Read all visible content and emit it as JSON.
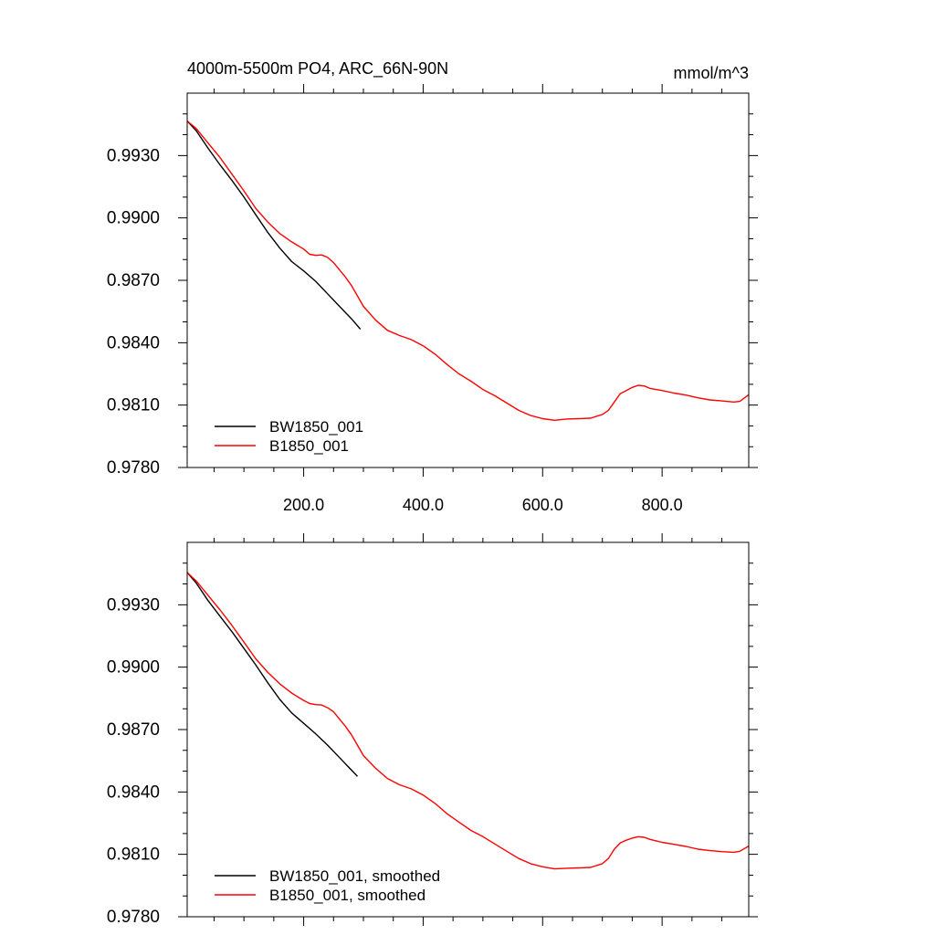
{
  "chart_data": [
    {
      "type": "line",
      "title": "4000m-5500m PO4, ARC_66N-90N",
      "units": "mmol/m^3",
      "xlim": [
        5,
        945
      ],
      "ylim": [
        0.978,
        0.996
      ],
      "xticks": [
        200,
        400,
        600,
        800
      ],
      "xtick_labels": [
        "200.0",
        "400.0",
        "600.0",
        "800.0"
      ],
      "yticks": [
        0.978,
        0.981,
        0.984,
        0.987,
        0.99,
        0.993
      ],
      "ytick_labels": [
        "0.9780",
        "0.9810",
        "0.9840",
        "0.9870",
        "0.9900",
        "0.9930"
      ],
      "legend": "bottom-left",
      "series": [
        {
          "name": "BW1850_001",
          "color": "#000000",
          "x": [
            5,
            20,
            40,
            60,
            80,
            100,
            120,
            140,
            160,
            180,
            200,
            220,
            240,
            260,
            280,
            295
          ],
          "y": [
            0.99466,
            0.9942,
            0.99335,
            0.99255,
            0.9918,
            0.991,
            0.99015,
            0.9893,
            0.98855,
            0.9879,
            0.98745,
            0.98695,
            0.98635,
            0.98575,
            0.98515,
            0.98465
          ]
        },
        {
          "name": "B1850_001",
          "color": "#ff0000",
          "x": [
            5,
            20,
            40,
            60,
            80,
            100,
            120,
            140,
            160,
            180,
            200,
            210,
            220,
            230,
            240,
            250,
            260,
            270,
            280,
            290,
            300,
            320,
            340,
            360,
            380,
            400,
            420,
            440,
            460,
            480,
            500,
            520,
            540,
            560,
            580,
            600,
            620,
            640,
            660,
            680,
            700,
            710,
            720,
            730,
            740,
            750,
            760,
            770,
            780,
            790,
            800,
            820,
            840,
            860,
            880,
            900,
            920,
            930,
            945
          ],
          "y": [
            0.99466,
            0.9943,
            0.9936,
            0.9929,
            0.9921,
            0.9913,
            0.99045,
            0.9898,
            0.98925,
            0.98885,
            0.9885,
            0.98825,
            0.9882,
            0.98822,
            0.9881,
            0.98785,
            0.9875,
            0.98715,
            0.98675,
            0.98625,
            0.98575,
            0.9851,
            0.9846,
            0.98435,
            0.98415,
            0.98385,
            0.98345,
            0.98295,
            0.9825,
            0.98215,
            0.98175,
            0.98145,
            0.9811,
            0.98075,
            0.9805,
            0.98035,
            0.98027,
            0.98033,
            0.98035,
            0.98037,
            0.98055,
            0.98075,
            0.98115,
            0.98155,
            0.9817,
            0.98185,
            0.98195,
            0.98192,
            0.9818,
            0.98175,
            0.9817,
            0.98158,
            0.98148,
            0.98135,
            0.98125,
            0.9812,
            0.98115,
            0.98118,
            0.9815
          ]
        }
      ]
    },
    {
      "type": "line",
      "xlim": [
        5,
        945
      ],
      "ylim": [
        0.978,
        0.996
      ],
      "xticks": [
        200,
        400,
        600,
        800
      ],
      "yticks": [
        0.978,
        0.981,
        0.984,
        0.987,
        0.99,
        0.993
      ],
      "ytick_labels": [
        "0.9780",
        "0.9810",
        "0.9840",
        "0.9870",
        "0.9900",
        "0.9930"
      ],
      "legend": "bottom-left",
      "series": [
        {
          "name": "BW1850_001, smoothed",
          "color": "#000000",
          "x": [
            5,
            20,
            40,
            60,
            80,
            100,
            120,
            140,
            160,
            180,
            200,
            220,
            240,
            260,
            280,
            290
          ],
          "y": [
            0.99455,
            0.99405,
            0.9932,
            0.99245,
            0.9917,
            0.9909,
            0.9901,
            0.98925,
            0.98845,
            0.9878,
            0.9873,
            0.9868,
            0.98625,
            0.98565,
            0.98505,
            0.98475
          ]
        },
        {
          "name": "B1850_001, smoothed",
          "color": "#ff0000",
          "x": [
            5,
            20,
            40,
            60,
            80,
            100,
            120,
            140,
            160,
            180,
            200,
            210,
            220,
            230,
            240,
            250,
            260,
            270,
            280,
            290,
            300,
            320,
            340,
            360,
            380,
            400,
            420,
            440,
            460,
            480,
            500,
            520,
            540,
            560,
            580,
            600,
            620,
            640,
            660,
            680,
            700,
            710,
            720,
            730,
            740,
            750,
            760,
            770,
            780,
            790,
            800,
            820,
            840,
            860,
            880,
            900,
            920,
            930,
            945
          ],
          "y": [
            0.99455,
            0.99415,
            0.99345,
            0.99275,
            0.992,
            0.9912,
            0.9904,
            0.98975,
            0.9892,
            0.98875,
            0.9884,
            0.98825,
            0.9882,
            0.98818,
            0.98805,
            0.98785,
            0.9875,
            0.98715,
            0.98675,
            0.98625,
            0.98575,
            0.98515,
            0.98465,
            0.98435,
            0.98415,
            0.98385,
            0.98345,
            0.98295,
            0.98255,
            0.98215,
            0.98185,
            0.9815,
            0.98115,
            0.9808,
            0.98055,
            0.9804,
            0.9803,
            0.98033,
            0.98035,
            0.98037,
            0.98055,
            0.9808,
            0.98125,
            0.98155,
            0.98168,
            0.98178,
            0.98185,
            0.98182,
            0.98172,
            0.98165,
            0.98158,
            0.98148,
            0.98138,
            0.98125,
            0.98118,
            0.98113,
            0.9811,
            0.98115,
            0.9814
          ]
        }
      ]
    }
  ]
}
